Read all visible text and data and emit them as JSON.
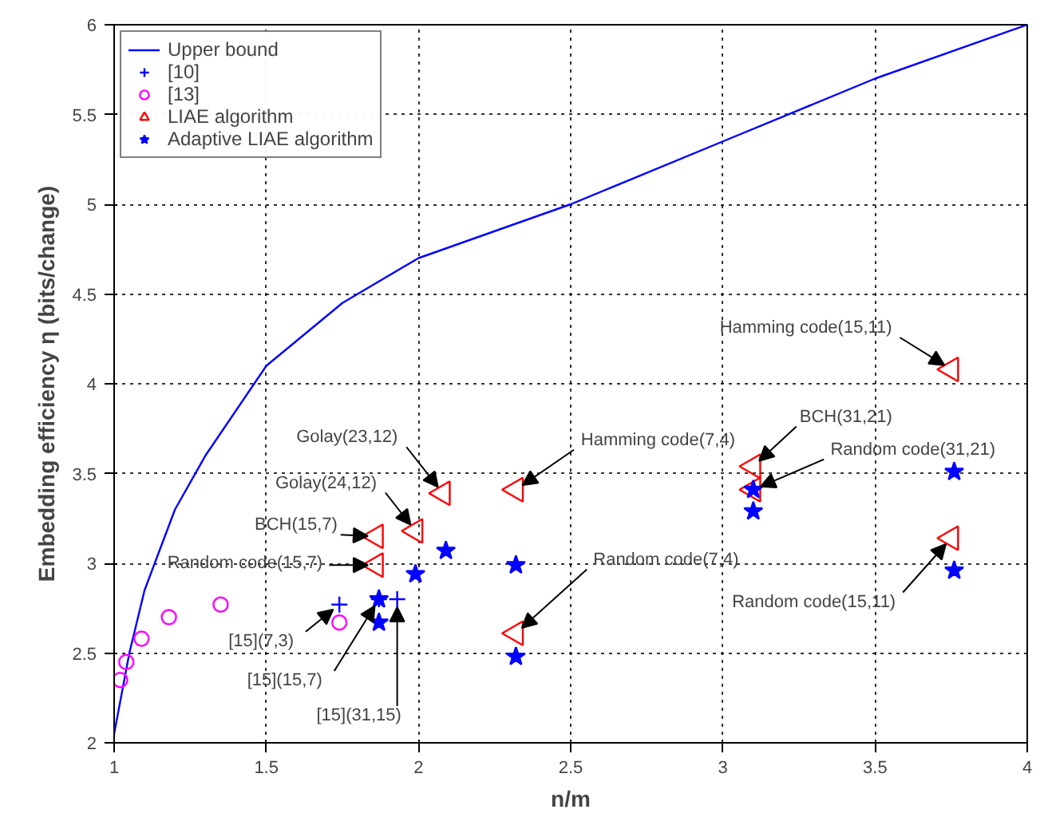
{
  "chart_data": {
    "type": "scatter",
    "xlabel": "n/m",
    "ylabel": "Embedding efficiency η (bits/change)",
    "xlim": [
      1,
      4
    ],
    "ylim": [
      2,
      6
    ],
    "xticks": [
      1,
      1.5,
      2,
      2.5,
      3,
      3.5,
      4
    ],
    "yticks": [
      2,
      2.5,
      3,
      3.5,
      4,
      4.5,
      5,
      5.5,
      6
    ],
    "grid": true,
    "legend": "top left",
    "series": [
      {
        "name": "Upper bound",
        "type": "line",
        "color": "#0000ff",
        "marker": "none",
        "x": [
          1.0,
          1.05,
          1.1,
          1.2,
          1.3,
          1.5,
          1.75,
          2.0,
          2.5,
          3.0,
          3.5,
          4.0
        ],
        "values": [
          2.05,
          2.5,
          2.85,
          3.3,
          3.6,
          4.1,
          4.45,
          4.7,
          5.0,
          5.35,
          5.7,
          6.0
        ]
      },
      {
        "name": "[10]",
        "color": "#0000ff",
        "marker": "cross",
        "x": [
          1.74,
          1.87,
          1.93
        ],
        "values": [
          2.77,
          2.8,
          2.8
        ]
      },
      {
        "name": "[13]",
        "color": "#ff00ff",
        "marker": "circle",
        "x": [
          1.02,
          1.04,
          1.09,
          1.18,
          1.35,
          1.74
        ],
        "values": [
          2.35,
          2.45,
          2.58,
          2.7,
          2.77,
          2.67
        ]
      },
      {
        "name": "LIAE algorithm",
        "color": "#ff0000",
        "marker": "triangle",
        "x": [
          1.86,
          1.86,
          1.99,
          2.08,
          2.32,
          2.32,
          3.1,
          3.1,
          3.75,
          3.75
        ],
        "values": [
          2.99,
          3.15,
          3.18,
          3.39,
          3.41,
          2.61,
          3.54,
          3.41,
          4.08,
          3.14
        ]
      },
      {
        "name": "Adaptive LIAE algorithm",
        "color": "#0000ff",
        "marker": "star",
        "x": [
          1.87,
          1.87,
          1.99,
          2.09,
          2.32,
          2.32,
          3.1,
          3.1,
          3.76,
          3.76
        ],
        "values": [
          2.8,
          2.67,
          2.94,
          3.07,
          2.99,
          2.48,
          3.41,
          3.29,
          3.51,
          2.96
        ]
      }
    ],
    "annotations": [
      {
        "text": "Golay(23,12)",
        "x": 2.08,
        "y": 3.39
      },
      {
        "text": "Golay(24,12)",
        "x": 1.99,
        "y": 3.18
      },
      {
        "text": "BCH(15,7)",
        "x": 1.86,
        "y": 3.15
      },
      {
        "text": "Random code(15,7)",
        "x": 1.86,
        "y": 2.99
      },
      {
        "text": "[15](7,3)",
        "x": 1.74,
        "y": 2.77
      },
      {
        "text": "[15](15,7)",
        "x": 1.87,
        "y": 2.8
      },
      {
        "text": "[15](31,15)",
        "x": 1.93,
        "y": 2.8
      },
      {
        "text": "Hamming code(15,11)",
        "x": 3.75,
        "y": 4.08
      },
      {
        "text": "Hamming code(7,4)",
        "x": 2.32,
        "y": 3.41
      },
      {
        "text": "BCH(31,21)",
        "x": 3.1,
        "y": 3.54
      },
      {
        "text": "Random code(31,21)",
        "x": 3.1,
        "y": 3.41
      },
      {
        "text": "Random code(7,4)",
        "x": 2.32,
        "y": 2.61
      },
      {
        "text": "Random code(15,11)",
        "x": 3.75,
        "y": 3.14
      }
    ]
  }
}
